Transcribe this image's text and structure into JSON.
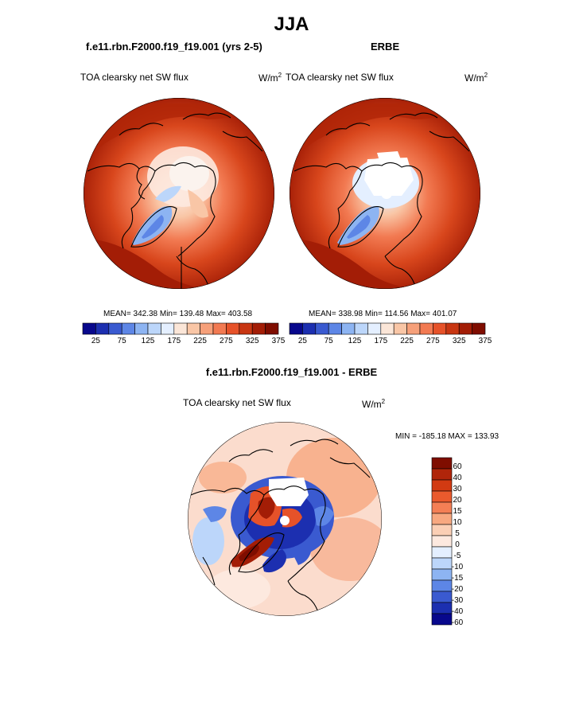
{
  "title": "JJA",
  "panels": {
    "model": {
      "title": "f.e11.rbn.F2000.f19_f19.001 (yrs 2-5)",
      "left_label": "TOA clearsky net SW flux",
      "units": "W/m",
      "units_sup": "2",
      "stats": "MEAN= 342.38  Min= 139.48  Max= 403.58"
    },
    "obs": {
      "title": "ERBE",
      "left_label": "TOA clearsky net SW flux",
      "units": "W/m",
      "units_sup": "2",
      "stats": "MEAN= 338.98  Min= 114.56  Max= 401.07"
    },
    "diff": {
      "title": "f.e11.rbn.F2000.f19_f19.001 - ERBE",
      "left_label": "TOA clearsky net SW flux",
      "units": "W/m",
      "units_sup": "2",
      "stats": "MIN = -185.18 MAX = 133.93"
    }
  },
  "colorbar_top": {
    "orientation": "horizontal",
    "tick_labels": [
      "25",
      "75",
      "125",
      "175",
      "225",
      "275",
      "325",
      "375"
    ],
    "colors": [
      "#08088c",
      "#1c2fb0",
      "#3a5ad0",
      "#5d86e6",
      "#8db4f2",
      "#bcd6fa",
      "#e4efff",
      "#fbe6d8",
      "#f9c6a6",
      "#f6a07a",
      "#f27a52",
      "#e65229",
      "#c83612",
      "#a31d06",
      "#7f0d00"
    ]
  },
  "colorbar_diff": {
    "orientation": "vertical",
    "tick_labels": [
      "60",
      "40",
      "30",
      "20",
      "15",
      "10",
      "5",
      "0",
      "-5",
      "-10",
      "-15",
      "-20",
      "-30",
      "-40",
      "-60"
    ],
    "colors": [
      "#7f0d00",
      "#b0250a",
      "#d23a12",
      "#ea5a2d",
      "#f47f55",
      "#f8a880",
      "#fbcfb5",
      "#fde9df",
      "#e4efff",
      "#bcd6fa",
      "#8db4f2",
      "#5d86e6",
      "#3a5ad0",
      "#1c2fb0",
      "#08088c"
    ]
  }
}
